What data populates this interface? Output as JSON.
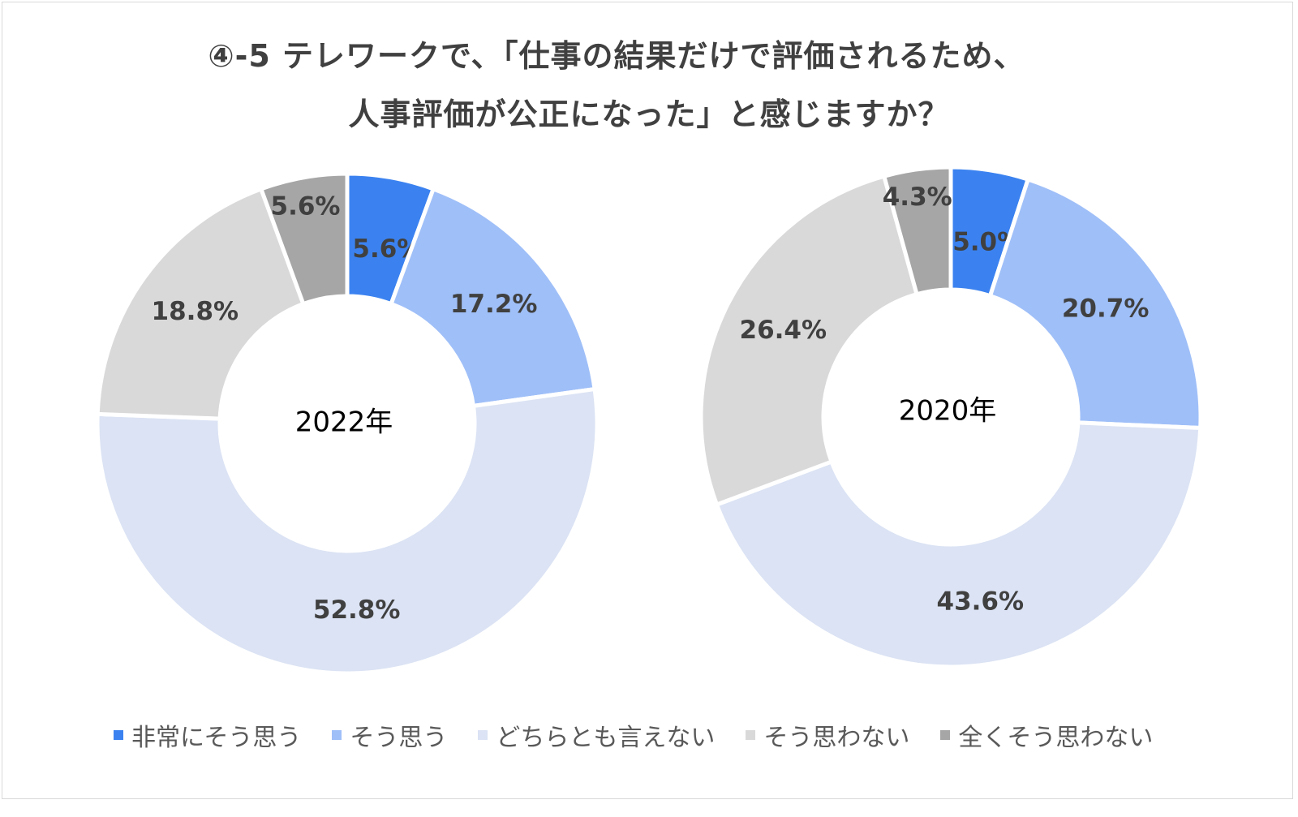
{
  "title_line1": "④-5 テレワークで、「仕事の結果だけで評価されるため、",
  "title_line2": "人事評価が公正になった」と感じますか？",
  "chart_data": [
    {
      "type": "pie",
      "center_label": "2022年",
      "categories": [
        "非常にそう思う",
        "そう思う",
        "どちらとも言えない",
        "そう思わない",
        "全くそう思わない"
      ],
      "values": [
        5.6,
        17.2,
        52.8,
        18.8,
        5.6
      ],
      "labels": [
        "5.6%",
        "17.2%",
        "52.8%",
        "18.8%",
        "5.6%"
      ]
    },
    {
      "type": "pie",
      "center_label": "2020年",
      "categories": [
        "非常にそう思う",
        "そう思う",
        "どちらとも言えない",
        "そう思わない",
        "全くそう思わない"
      ],
      "values": [
        5.0,
        20.7,
        43.6,
        26.4,
        4.3
      ],
      "labels": [
        "5.0%",
        "20.7%",
        "43.6%",
        "26.4%",
        "4.3%"
      ]
    }
  ],
  "legend": {
    "items": [
      {
        "label": "非常にそう思う",
        "color": "#3b82f0"
      },
      {
        "label": "そう思う",
        "color": "#9fbff8"
      },
      {
        "label": "どちらとも言えない",
        "color": "#dbe3f4"
      },
      {
        "label": "そう思わない",
        "color": "#d9d9d9"
      },
      {
        "label": "全くそう思わない",
        "color": "#a6a6a6"
      }
    ]
  },
  "colors": [
    "#3b82f0",
    "#9fbff8",
    "#dbe3f4",
    "#d9d9d9",
    "#a6a6a6"
  ]
}
